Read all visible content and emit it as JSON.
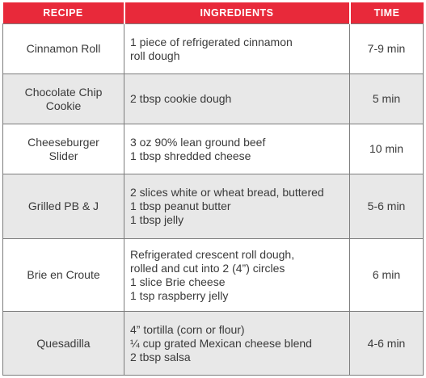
{
  "headers": {
    "recipe": "RECIPE",
    "ingredients": "INGREDIENTS",
    "time": "TIME"
  },
  "rows": [
    {
      "recipe": [
        "Cinnamon Roll"
      ],
      "ingredients": [
        "1 piece of refrigerated cinnamon",
        "roll dough"
      ],
      "time": "7-9 min"
    },
    {
      "recipe": [
        "Chocolate Chip",
        "Cookie"
      ],
      "ingredients": [
        "2 tbsp cookie dough"
      ],
      "time": "5 min"
    },
    {
      "recipe": [
        "Cheeseburger",
        "Slider"
      ],
      "ingredients": [
        "3 oz 90% lean ground beef",
        "1 tbsp shredded cheese"
      ],
      "time": "10 min"
    },
    {
      "recipe": [
        "Grilled PB & J"
      ],
      "ingredients": [
        "2 slices white or wheat bread, buttered",
        "1 tbsp peanut butter",
        "1 tbsp jelly"
      ],
      "time": "5-6 min"
    },
    {
      "recipe": [
        "Brie en Croute"
      ],
      "ingredients": [
        "Refrigerated crescent roll dough,",
        "rolled and cut into 2 (4”) circles",
        "1 slice Brie cheese",
        "1 tsp raspberry jelly"
      ],
      "time": "6 min"
    },
    {
      "recipe": [
        "Quesadilla"
      ],
      "ingredients": [
        "4” tortilla (corn or flour)",
        "¼ cup grated Mexican cheese blend",
        "2 tbsp salsa"
      ],
      "time": "4-6 min"
    }
  ],
  "colors": {
    "header_bg": "#e8293a",
    "header_text": "#ffffff",
    "row_alt_bg": "#e8e8e8",
    "border": "#7d7d7d",
    "text": "#3a3a3a"
  }
}
